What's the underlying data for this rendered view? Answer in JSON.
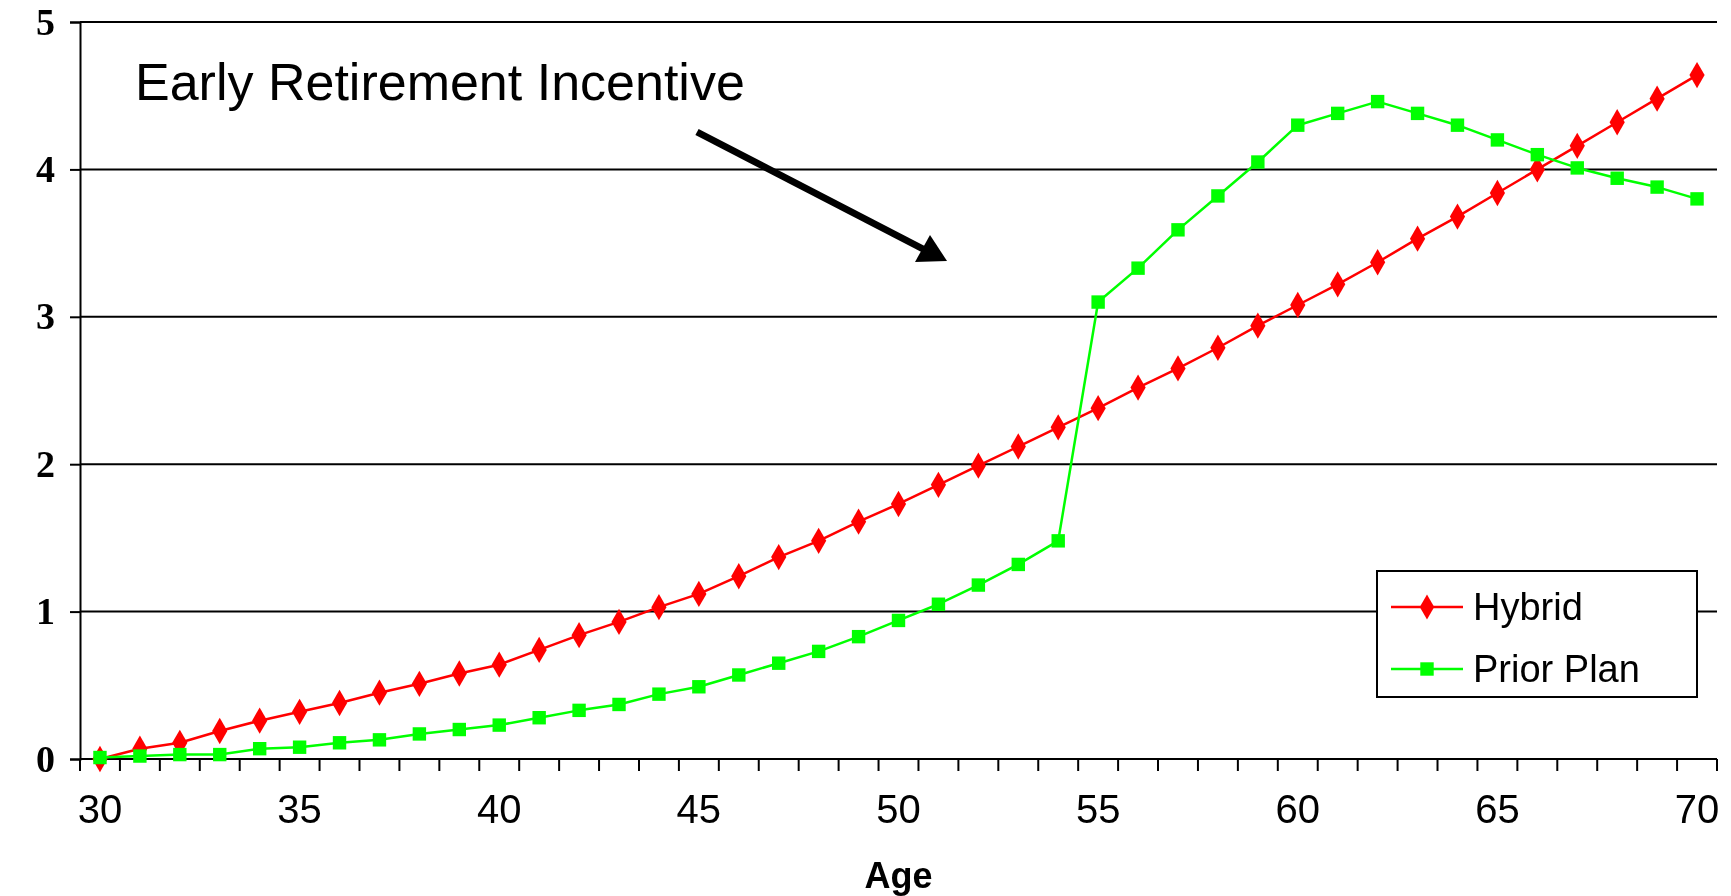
{
  "chart_data": {
    "type": "line",
    "xlabel": "Age",
    "categories": [
      "30",
      null,
      null,
      null,
      null,
      "35",
      null,
      null,
      null,
      null,
      "40",
      null,
      null,
      null,
      null,
      "45",
      null,
      null,
      null,
      null,
      "50",
      null,
      null,
      null,
      null,
      "55",
      null,
      null,
      null,
      null,
      "60",
      null,
      null,
      null,
      null,
      "65",
      null,
      null,
      null,
      null,
      "70"
    ],
    "series": [
      {
        "name": "Hybrid",
        "color": "#ff0000",
        "marker": "diamond",
        "values": [
          0,
          0.07,
          0.11,
          0.19,
          0.26,
          0.32,
          0.38,
          0.45,
          0.51,
          0.58,
          0.64,
          0.74,
          0.84,
          0.93,
          1.03,
          1.12,
          1.24,
          1.37,
          1.48,
          1.61,
          1.73,
          1.86,
          1.99,
          2.12,
          2.25,
          2.38,
          2.52,
          2.65,
          2.79,
          2.94,
          3.08,
          3.22,
          3.37,
          3.53,
          3.68,
          3.84,
          4.0,
          4.16,
          4.32,
          4.48,
          4.64
        ]
      },
      {
        "name": "Prior Plan",
        "color": "#00ff00",
        "marker": "square",
        "values": [
          0.01,
          0.02,
          0.03,
          0.03,
          0.07,
          0.08,
          0.11,
          0.13,
          0.17,
          0.2,
          0.23,
          0.28,
          0.33,
          0.37,
          0.44,
          0.49,
          0.57,
          0.65,
          0.73,
          0.83,
          0.94,
          1.05,
          1.18,
          1.32,
          1.48,
          3.1,
          3.33,
          3.59,
          3.82,
          4.05,
          4.3,
          4.38,
          4.46,
          4.38,
          4.3,
          4.2,
          4.1,
          4.01,
          3.94,
          3.88,
          3.8
        ]
      }
    ],
    "ylim": [
      0,
      5
    ],
    "yticks": [
      0,
      1,
      2,
      3,
      4,
      5
    ],
    "grid": "y",
    "legend": "bottom right",
    "line_style": "solid",
    "annotations": [
      "Early Retirement Incentive"
    ]
  }
}
